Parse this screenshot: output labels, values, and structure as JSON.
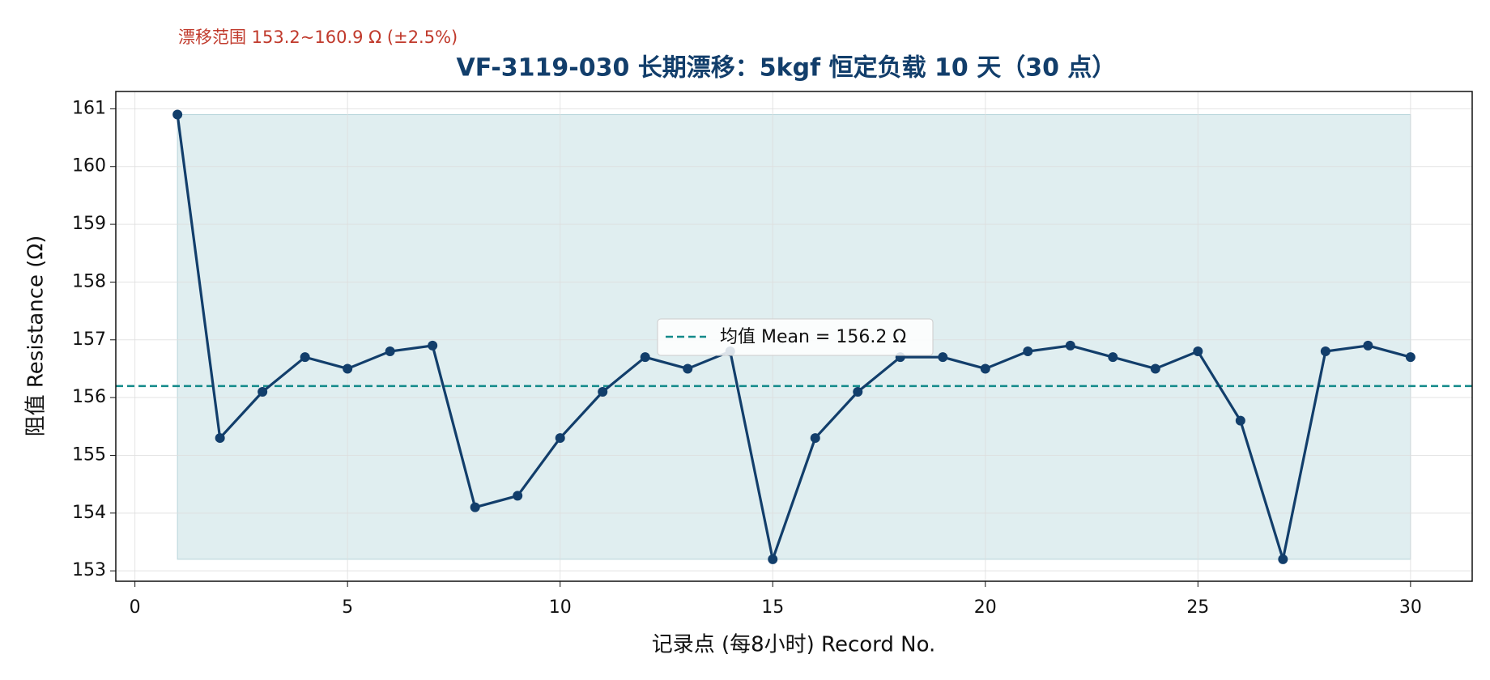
{
  "chart_data": {
    "type": "line",
    "title": "VF-3119-030 长期漂移：5kgf 恒定负载 10 天（30 点）",
    "annotation": "漂移范围 153.2~160.9 Ω (±2.5%)",
    "x_label": "记录点 (每8小时) Record No.",
    "y_label": "阻值 Resistance (Ω)",
    "x": [
      1,
      2,
      3,
      4,
      5,
      6,
      7,
      8,
      9,
      10,
      11,
      12,
      13,
      14,
      15,
      16,
      17,
      18,
      19,
      20,
      21,
      22,
      23,
      24,
      25,
      26,
      27,
      28,
      29,
      30
    ],
    "series": [
      {
        "name": null,
        "color": "#123e6b",
        "values": [
          160.9,
          155.3,
          156.1,
          156.7,
          156.5,
          156.8,
          156.9,
          154.1,
          154.3,
          155.3,
          156.1,
          156.7,
          156.5,
          156.8,
          153.2,
          155.3,
          156.1,
          156.7,
          156.7,
          156.5,
          156.8,
          156.9,
          156.7,
          156.5,
          156.8,
          155.6,
          153.2,
          156.8,
          156.9,
          156.7
        ]
      }
    ],
    "mean_line": {
      "name": "均值 Mean = 156.2 Ω",
      "value": 156.2,
      "color": "#138a8a"
    },
    "band": {
      "x": [
        1,
        30
      ],
      "y": [
        153.2,
        160.9
      ],
      "color": "#d3e7ea"
    },
    "xlim": [
      -0.45,
      31.45
    ],
    "ylim": [
      152.82,
      161.3
    ],
    "xticks": [
      0,
      5,
      10,
      15,
      20,
      25,
      30
    ],
    "yticks": [
      153,
      154,
      155,
      156,
      157,
      158,
      159,
      160,
      161
    ],
    "grid": true,
    "legend": "center"
  }
}
